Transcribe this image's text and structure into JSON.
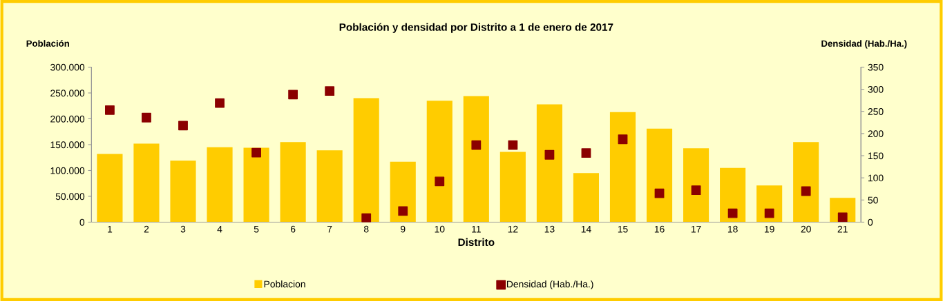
{
  "chart_data": {
    "type": "bar",
    "title": "Población y densidad por Distrito a 1 de enero de 2017",
    "xlabel": "Distrito",
    "ylabel": "Población",
    "y2label": "Densidad (Hab./Ha.)",
    "categories": [
      "1",
      "2",
      "3",
      "4",
      "5",
      "6",
      "7",
      "8",
      "9",
      "10",
      "11",
      "12",
      "13",
      "14",
      "15",
      "16",
      "17",
      "18",
      "19",
      "20",
      "21"
    ],
    "series": [
      {
        "name": "Poblacion",
        "color": "#ffcc00",
        "values": [
          132000,
          152000,
          119000,
          145000,
          144000,
          155000,
          139000,
          240000,
          117000,
          235000,
          244000,
          136000,
          228000,
          95000,
          213000,
          181000,
          143000,
          105000,
          71000,
          155000,
          47000
        ]
      },
      {
        "name": "Densidad (Hab./Ha.)",
        "type": "scatter",
        "axis": "y2",
        "marker": "square",
        "color": "#8b0000",
        "values": [
          253,
          236,
          218,
          269,
          157,
          288,
          296,
          9,
          25,
          92,
          174,
          174,
          152,
          156,
          187,
          65,
          72,
          20,
          20,
          70,
          11
        ]
      }
    ],
    "ylim": [
      0,
      300000
    ],
    "yticks": [
      {
        "value": 0,
        "label": "0"
      },
      {
        "value": 50000,
        "label": "50.000"
      },
      {
        "value": 100000,
        "label": "100.000"
      },
      {
        "value": 150000,
        "label": "150.000"
      },
      {
        "value": 200000,
        "label": "200.000"
      },
      {
        "value": 250000,
        "label": "250.000"
      },
      {
        "value": 300000,
        "label": "300.000"
      }
    ],
    "y2lim": [
      0,
      350
    ],
    "y2ticks": [
      0,
      50,
      100,
      150,
      200,
      250,
      300,
      350
    ],
    "legend": "bottom",
    "grid": false
  }
}
